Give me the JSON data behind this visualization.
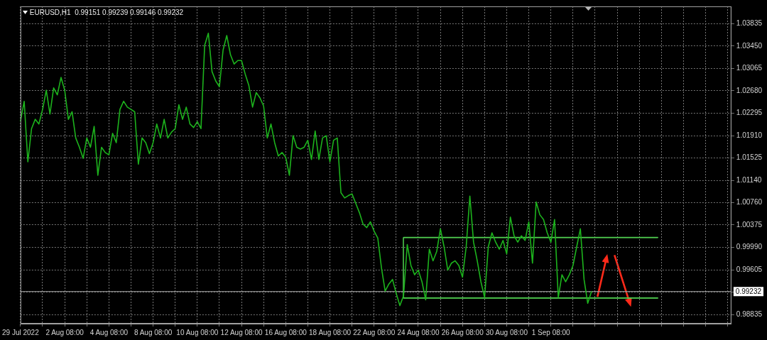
{
  "chart_data": {
    "type": "line",
    "title": "EURUSD,H1  0.99151 0.99239 0.99146 0.99232",
    "categories": [
      "29 Jul 2022",
      null,
      null,
      null,
      null,
      null,
      null,
      null,
      null,
      null,
      null,
      null,
      "2 Aug 08:00",
      null,
      null,
      null,
      null,
      null,
      null,
      null,
      null,
      null,
      null,
      null,
      "4 Aug 08:00",
      null,
      null,
      null,
      null,
      null,
      null,
      null,
      null,
      null,
      null,
      null,
      "8 Aug 08:00",
      null,
      null,
      null,
      null,
      null,
      null,
      null,
      null,
      null,
      null,
      null,
      "10 Aug 08:00",
      null,
      null,
      null,
      null,
      null,
      null,
      null,
      null,
      null,
      null,
      null,
      "12 Aug 08:00",
      null,
      null,
      null,
      null,
      null,
      null,
      null,
      null,
      null,
      null,
      null,
      "16 Aug 08:00",
      null,
      null,
      null,
      null,
      null,
      null,
      null,
      null,
      null,
      null,
      null,
      "18 Aug 08:00",
      null,
      null,
      null,
      null,
      null,
      null,
      null,
      null,
      null,
      null,
      null,
      "22 Aug 08:00",
      null,
      null,
      null,
      null,
      null,
      null,
      null,
      null,
      null,
      null,
      null,
      "24 Aug 08:00",
      null,
      null,
      null,
      null,
      null,
      null,
      null,
      null,
      null,
      null,
      null,
      "26 Aug 08:00",
      null,
      null,
      null,
      null,
      null,
      null,
      null,
      null,
      null,
      null,
      null,
      "30 Aug 08:00",
      null,
      null,
      null,
      null,
      null,
      null,
      null,
      null,
      null,
      null,
      null,
      "1 Sep 08:00",
      null,
      null,
      null,
      null,
      null,
      null,
      null,
      null,
      null,
      null,
      null,
      null,
      null,
      null,
      null,
      null,
      null,
      null,
      null,
      null,
      null,
      null,
      null,
      null,
      null,
      null,
      null,
      null,
      null,
      null,
      null,
      null,
      null,
      null,
      null,
      null,
      null,
      null,
      null,
      null,
      null,
      null,
      null,
      null,
      null,
      null,
      null,
      null,
      null
    ],
    "series": [
      {
        "color": "#1db31d",
        "values": [
          1.0216,
          1.025,
          1.0146,
          1.0203,
          1.0219,
          1.0211,
          1.0236,
          1.0269,
          1.0228,
          1.0273,
          1.0261,
          1.0291,
          1.0269,
          1.0219,
          1.0232,
          1.0187,
          1.0171,
          1.0152,
          1.0187,
          1.0171,
          1.0207,
          1.0123,
          1.0171,
          1.0162,
          1.0158,
          1.0195,
          1.0179,
          1.0236,
          1.025,
          1.024,
          1.0236,
          1.0232,
          1.0142,
          1.0187,
          1.0179,
          1.016,
          1.0179,
          1.0211,
          1.0187,
          1.0219,
          1.0187,
          1.0197,
          1.0203,
          1.0244,
          1.0219,
          1.024,
          1.0211,
          1.0205,
          1.0215,
          1.0203,
          1.0346,
          1.0367,
          1.0301,
          1.0285,
          1.0275,
          1.0338,
          1.0363,
          1.033,
          1.0314,
          1.032,
          1.032,
          1.0297,
          1.0277,
          1.024,
          1.0265,
          1.0256,
          1.0242,
          1.0187,
          1.0211,
          1.0179,
          1.0156,
          1.0162,
          1.0154,
          1.0123,
          1.0191,
          1.0171,
          1.0168,
          1.0171,
          1.0183,
          1.015,
          1.0199,
          1.015,
          1.0187,
          1.0191,
          1.0146,
          1.0183,
          1.0187,
          1.0093,
          1.0084,
          1.0088,
          1.0091,
          1.0075,
          1.0059,
          1.0039,
          1.0033,
          1.0043,
          1.0027,
          1.0015,
          0.9964,
          0.9924,
          0.9936,
          0.9944,
          0.992,
          0.9899,
          0.9916,
          1.0004,
          0.9968,
          0.9952,
          0.996,
          0.994,
          0.9909,
          0.9996,
          0.9976,
          0.9992,
          1.0031,
          1.0,
          0.996,
          0.9972,
          0.9976,
          0.9968,
          0.9948,
          1.0,
          1.0087,
          1.0008,
          0.9976,
          0.994,
          0.9913,
          1.0,
          1.0024,
          1.0008,
          0.9996,
          1.0011,
          0.9988,
          1.0051,
          1.0019,
          1.0008,
          1.0019,
          1.0011,
          1.0043,
          0.9972,
          1.0077,
          1.0055,
          1.0047,
          1.0024,
          1.0008,
          1.0047,
          0.9913,
          0.9952,
          0.994,
          0.9952,
          0.9968,
          1.0,
          1.0031,
          0.9944,
          0.9903,
          0.9923,
          null,
          null,
          null,
          null,
          null,
          null,
          null,
          null,
          null,
          null,
          null,
          null,
          null,
          null,
          null,
          null,
          null,
          null,
          null,
          null,
          null,
          null,
          null,
          null,
          null,
          null,
          null,
          null,
          null,
          null,
          null,
          null,
          null,
          null,
          null,
          null,
          null,
          null
        ]
      },
      {
        "type": "line",
        "color": "#52d452",
        "values": [
          null,
          null,
          null,
          null,
          null,
          null,
          null,
          null,
          null,
          null,
          null,
          null,
          null,
          null,
          null,
          null,
          null,
          null,
          null,
          null,
          null,
          null,
          null,
          null,
          null,
          null,
          null,
          null,
          null,
          null,
          null,
          null,
          null,
          null,
          null,
          null,
          null,
          null,
          null,
          null,
          null,
          null,
          null,
          null,
          null,
          null,
          null,
          null,
          null,
          null,
          null,
          null,
          null,
          null,
          null,
          null,
          null,
          null,
          null,
          null,
          null,
          null,
          null,
          null,
          null,
          null,
          null,
          null,
          null,
          null,
          null,
          null,
          null,
          null,
          null,
          null,
          null,
          null,
          null,
          null,
          null,
          null,
          null,
          null,
          null,
          null,
          null,
          null,
          null,
          null,
          null,
          null,
          null,
          null,
          null,
          null,
          null,
          null,
          null,
          null,
          null,
          null,
          null,
          null,
          1.0016,
          1.0016,
          1.0016,
          1.0016,
          1.0016,
          1.0016,
          1.0016,
          1.0016,
          1.0016,
          1.0016,
          1.0016,
          1.0016,
          1.0016,
          1.0016,
          1.0016,
          1.0016,
          1.0016,
          1.0016,
          1.0016,
          1.0016,
          1.0016,
          1.0016,
          1.0016,
          1.0016,
          1.0016,
          1.0016,
          1.0016,
          1.0016,
          1.0016,
          1.0016,
          1.0016,
          1.0016,
          1.0016,
          1.0016,
          1.0016,
          1.0016,
          1.0016,
          1.0016,
          1.0016,
          1.0016,
          1.0016,
          1.0016,
          1.0016,
          1.0016,
          1.0016,
          1.0016,
          1.0016,
          1.0016,
          1.0016,
          1.0016,
          1.0016,
          1.0016,
          1.0016,
          1.0016,
          1.0016,
          1.0016,
          1.0016,
          1.0016,
          1.0016,
          1.0016,
          1.0016,
          1.0016,
          1.0016,
          1.0016,
          1.0016,
          1.0016,
          1.0016,
          1.0016,
          1.0016,
          1.0016,
          null,
          null,
          null,
          null,
          null,
          null,
          null,
          null,
          null,
          null,
          null,
          null,
          null,
          null,
          null,
          null,
          null,
          null,
          null,
          null
        ]
      },
      {
        "type": "line",
        "color": "#52d452",
        "values": [
          null,
          null,
          null,
          null,
          null,
          null,
          null,
          null,
          null,
          null,
          null,
          null,
          null,
          null,
          null,
          null,
          null,
          null,
          null,
          null,
          null,
          null,
          null,
          null,
          null,
          null,
          null,
          null,
          null,
          null,
          null,
          null,
          null,
          null,
          null,
          null,
          null,
          null,
          null,
          null,
          null,
          null,
          null,
          null,
          null,
          null,
          null,
          null,
          null,
          null,
          null,
          null,
          null,
          null,
          null,
          null,
          null,
          null,
          null,
          null,
          null,
          null,
          null,
          null,
          null,
          null,
          null,
          null,
          null,
          null,
          null,
          null,
          null,
          null,
          null,
          null,
          null,
          null,
          null,
          null,
          null,
          null,
          null,
          null,
          null,
          null,
          null,
          null,
          null,
          null,
          null,
          null,
          null,
          null,
          null,
          null,
          null,
          null,
          null,
          null,
          null,
          null,
          null,
          null,
          0.9912,
          0.9912,
          0.9912,
          0.9912,
          0.9912,
          0.9912,
          0.9912,
          0.9912,
          0.9912,
          0.9912,
          0.9912,
          0.9912,
          0.9912,
          0.9912,
          0.9912,
          0.9912,
          0.9912,
          0.9912,
          0.9912,
          0.9912,
          0.9912,
          0.9912,
          0.9912,
          0.9912,
          0.9912,
          0.9912,
          0.9912,
          0.9912,
          0.9912,
          0.9912,
          0.9912,
          0.9912,
          0.9912,
          0.9912,
          0.9912,
          0.9912,
          0.9912,
          0.9912,
          0.9912,
          0.9912,
          0.9912,
          0.9912,
          0.9912,
          0.9912,
          0.9912,
          0.9912,
          0.9912,
          0.9912,
          0.9912,
          0.9912,
          0.9912,
          0.9912,
          0.9912,
          0.9912,
          0.9912,
          0.9912,
          0.9912,
          0.9912,
          0.9912,
          0.9912,
          0.9912,
          0.9912,
          0.9912,
          0.9912,
          0.9912,
          0.9912,
          0.9912,
          0.9912,
          0.9912,
          0.9912,
          null,
          null,
          null,
          null,
          null,
          null,
          null,
          null,
          null,
          null,
          null,
          null,
          null,
          null,
          null,
          null,
          null,
          null,
          null,
          null
        ]
      }
    ],
    "ylim": [
      0.9868,
      1.0413
    ],
    "yticks": [
      1.03835,
      {
        "value": 1.0345,
        "label": "1.03450"
      },
      1.03065,
      {
        "value": 1.0268,
        "label": "1.02680"
      },
      1.02295,
      {
        "value": 1.0191,
        "label": "1.01910"
      },
      1.01525,
      {
        "value": 1.0114,
        "label": "1.01140"
      },
      {
        "value": 1.0076,
        "label": "1.00760"
      },
      1.00375,
      {
        "value": 0.9999,
        "label": "0.99990"
      },
      0.99605,
      {
        "value": 0.9922,
        "label": null
      },
      0.98835
    ],
    "grid": true,
    "marker": "none",
    "ref_lines": [
      {
        "axis": "y",
        "value": 0.99232,
        "label": "0.99232",
        "color": "#a8a8a8"
      }
    ]
  }
}
